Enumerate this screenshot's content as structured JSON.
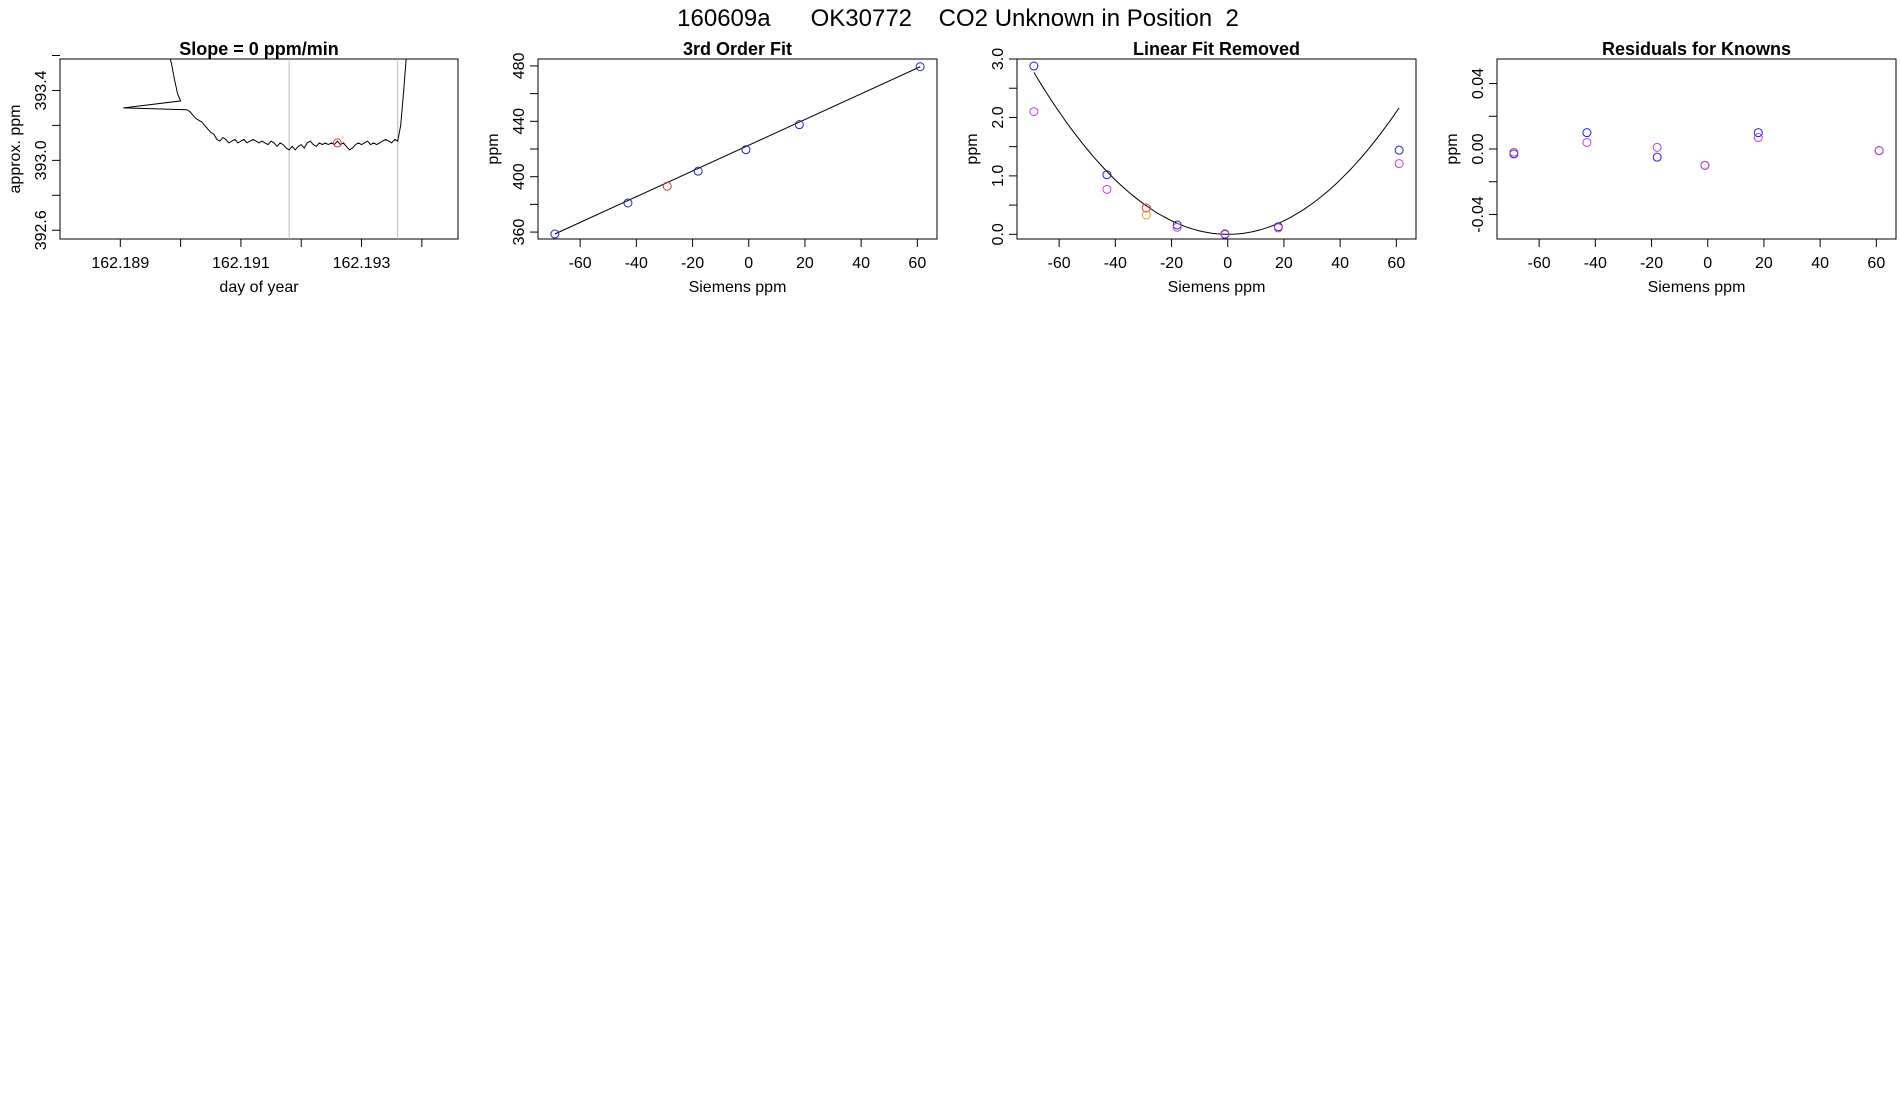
{
  "page": {
    "main_title": "160609a      OK30772    CO2 Unknown in Position  2"
  },
  "colors": {
    "line": "#000000",
    "blue": "#1f1fd0",
    "red": "#e03030",
    "magenta": "#c040e0",
    "orange": "#f0a020",
    "guide": "#bbbbbb",
    "frame": "#000000"
  },
  "chart_data": [
    {
      "type": "line",
      "title": "Slope =  0  ppm/min",
      "xlabel": "day of year",
      "ylabel": "approx. ppm",
      "xlim": [
        162.188,
        162.1946
      ],
      "ylim": [
        392.55,
        393.58
      ],
      "xticks": [
        162.189,
        162.19,
        162.191,
        162.192,
        162.193,
        162.194
      ],
      "xtick_labels": [
        "162.189",
        "",
        "162.191",
        "",
        "162.193",
        ""
      ],
      "yticks": [
        392.6,
        392.8,
        393.0,
        393.2,
        393.4,
        393.6
      ],
      "ytick_labels": [
        "392.6",
        "",
        "393.0",
        "",
        "393.4",
        ""
      ],
      "vlines": [
        162.1918,
        162.1936
      ],
      "trace": [
        [
          162.1898,
          393.62
        ],
        [
          162.18985,
          393.55
        ],
        [
          162.1899,
          393.46
        ],
        [
          162.18995,
          393.38
        ],
        [
          162.19,
          393.34
        ],
        [
          162.18905,
          393.3
        ],
        [
          162.1901,
          393.29
        ],
        [
          162.19015,
          393.28
        ],
        [
          162.1902,
          393.26
        ],
        [
          162.19025,
          393.24
        ],
        [
          162.1903,
          393.23
        ],
        [
          162.19035,
          393.22
        ],
        [
          162.1904,
          393.2
        ],
        [
          162.19045,
          393.18
        ],
        [
          162.1905,
          393.16
        ],
        [
          162.19055,
          393.15
        ],
        [
          162.1906,
          393.12
        ],
        [
          162.19065,
          393.11
        ],
        [
          162.1907,
          393.13
        ],
        [
          162.19075,
          393.12
        ],
        [
          162.1908,
          393.1
        ],
        [
          162.19085,
          393.11
        ],
        [
          162.1909,
          393.12
        ],
        [
          162.19095,
          393.1
        ],
        [
          162.191,
          393.11
        ],
        [
          162.19105,
          393.12
        ],
        [
          162.1911,
          393.1
        ],
        [
          162.19115,
          393.11
        ],
        [
          162.1912,
          393.12
        ],
        [
          162.19125,
          393.11
        ],
        [
          162.1913,
          393.1
        ],
        [
          162.19135,
          393.11
        ],
        [
          162.1914,
          393.1
        ],
        [
          162.19145,
          393.09
        ],
        [
          162.1915,
          393.11
        ],
        [
          162.19155,
          393.1
        ],
        [
          162.1916,
          393.08
        ],
        [
          162.19165,
          393.1
        ],
        [
          162.1917,
          393.09
        ],
        [
          162.19175,
          393.07
        ],
        [
          162.1918,
          393.06
        ],
        [
          162.19185,
          393.08
        ],
        [
          162.1919,
          393.06
        ],
        [
          162.19195,
          393.08
        ],
        [
          162.192,
          393.09
        ],
        [
          162.19205,
          393.07
        ],
        [
          162.1921,
          393.1
        ],
        [
          162.19215,
          393.11
        ],
        [
          162.1922,
          393.09
        ],
        [
          162.19225,
          393.08
        ],
        [
          162.1923,
          393.1
        ],
        [
          162.19235,
          393.09
        ],
        [
          162.1924,
          393.1
        ],
        [
          162.19245,
          393.09
        ],
        [
          162.1925,
          393.1
        ],
        [
          162.19255,
          393.09
        ],
        [
          162.1926,
          393.11
        ],
        [
          162.19265,
          393.09
        ],
        [
          162.1927,
          393.1
        ],
        [
          162.19275,
          393.08
        ],
        [
          162.1928,
          393.06
        ],
        [
          162.19285,
          393.07
        ],
        [
          162.1929,
          393.09
        ],
        [
          162.19295,
          393.1
        ],
        [
          162.193,
          393.09
        ],
        [
          162.19305,
          393.1
        ],
        [
          162.1931,
          393.11
        ],
        [
          162.19315,
          393.09
        ],
        [
          162.1932,
          393.1
        ],
        [
          162.19325,
          393.09
        ],
        [
          162.1933,
          393.1
        ],
        [
          162.19335,
          393.11
        ],
        [
          162.1934,
          393.12
        ],
        [
          162.19345,
          393.11
        ],
        [
          162.1935,
          393.1
        ],
        [
          162.19355,
          393.12
        ],
        [
          162.1936,
          393.11
        ],
        [
          162.19365,
          393.2
        ],
        [
          162.1937,
          393.4
        ],
        [
          162.19375,
          393.62
        ]
      ],
      "points": [
        {
          "x": 162.1926,
          "y": 393.1,
          "color": "red"
        }
      ]
    },
    {
      "type": "scatter",
      "title": "3rd Order Fit",
      "xlabel": "Siemens ppm",
      "ylabel": "ppm",
      "xlim": [
        -75,
        67
      ],
      "ylim": [
        355,
        485
      ],
      "xticks": [
        -60,
        -40,
        -20,
        0,
        20,
        40,
        60
      ],
      "xtick_labels": [
        "-60",
        "-40",
        "-20",
        "0",
        "20",
        "40",
        "60"
      ],
      "yticks": [
        360,
        380,
        400,
        420,
        440,
        460,
        480
      ],
      "ytick_labels": [
        "360",
        "",
        "400",
        "",
        "440",
        "",
        "480"
      ],
      "fit_line": [
        [
          -69,
          358.6
        ],
        [
          61,
          479.4
        ]
      ],
      "points": [
        {
          "x": -69,
          "y": 358.6,
          "color": "blue"
        },
        {
          "x": -43,
          "y": 381.0,
          "color": "blue"
        },
        {
          "x": -29,
          "y": 393.1,
          "color": "red"
        },
        {
          "x": -18,
          "y": 404.0,
          "color": "blue"
        },
        {
          "x": -1,
          "y": 419.5,
          "color": "blue"
        },
        {
          "x": 18,
          "y": 437.6,
          "color": "blue"
        },
        {
          "x": 61,
          "y": 479.4,
          "color": "blue"
        }
      ]
    },
    {
      "type": "scatter",
      "title": "Linear Fit Removed",
      "xlabel": "Siemens ppm",
      "ylabel": "ppm",
      "xlim": [
        -75,
        67
      ],
      "ylim": [
        -0.08,
        3.0
      ],
      "xticks": [
        -60,
        -40,
        -20,
        0,
        20,
        40,
        60
      ],
      "xtick_labels": [
        "-60",
        "-40",
        "-20",
        "0",
        "20",
        "40",
        "60"
      ],
      "yticks": [
        0.0,
        0.5,
        1.0,
        1.5,
        2.0,
        2.5,
        3.0
      ],
      "ytick_labels": [
        "0.0",
        "",
        "1.0",
        "",
        "2.0",
        "",
        "3.0"
      ],
      "curve": {
        "a": 0.000582,
        "x0": 0,
        "xmin": -69,
        "xmax": 61
      },
      "points": [
        {
          "x": -69,
          "y": 2.88,
          "color": "blue"
        },
        {
          "x": -69,
          "y": 2.1,
          "color": "magenta"
        },
        {
          "x": -43,
          "y": 1.02,
          "color": "blue"
        },
        {
          "x": -43,
          "y": 0.77,
          "color": "magenta"
        },
        {
          "x": -29,
          "y": 0.45,
          "color": "red"
        },
        {
          "x": -29,
          "y": 0.33,
          "color": "orange"
        },
        {
          "x": -18,
          "y": 0.16,
          "color": "blue"
        },
        {
          "x": -18,
          "y": 0.12,
          "color": "magenta"
        },
        {
          "x": -1,
          "y": 0.0,
          "color": "blue"
        },
        {
          "x": -1,
          "y": 0.01,
          "color": "magenta"
        },
        {
          "x": 18,
          "y": 0.13,
          "color": "blue"
        },
        {
          "x": 18,
          "y": 0.11,
          "color": "magenta"
        },
        {
          "x": 61,
          "y": 1.44,
          "color": "blue"
        },
        {
          "x": 61,
          "y": 1.21,
          "color": "magenta"
        }
      ]
    },
    {
      "type": "scatter",
      "title": "Residuals for Knowns",
      "xlabel": "Siemens ppm",
      "ylabel": "ppm",
      "xlim": [
        -75,
        67
      ],
      "ylim": [
        -0.055,
        0.055
      ],
      "xticks": [
        -60,
        -40,
        -20,
        0,
        20,
        40,
        60
      ],
      "xtick_labels": [
        "-60",
        "-40",
        "-20",
        "0",
        "20",
        "40",
        "60"
      ],
      "yticks": [
        -0.04,
        -0.02,
        0.0,
        0.02,
        0.04
      ],
      "ytick_labels": [
        "-0.04",
        "",
        "0.00",
        "",
        "0.04"
      ],
      "points": [
        {
          "x": -69,
          "y": -0.003,
          "color": "blue"
        },
        {
          "x": -69,
          "y": -0.002,
          "color": "magenta"
        },
        {
          "x": -43,
          "y": 0.01,
          "color": "blue"
        },
        {
          "x": -43,
          "y": 0.004,
          "color": "magenta"
        },
        {
          "x": -18,
          "y": -0.005,
          "color": "blue"
        },
        {
          "x": -18,
          "y": 0.001,
          "color": "magenta"
        },
        {
          "x": -1,
          "y": -0.01,
          "color": "blue"
        },
        {
          "x": -1,
          "y": -0.01,
          "color": "magenta"
        },
        {
          "x": 18,
          "y": 0.01,
          "color": "blue"
        },
        {
          "x": 18,
          "y": 0.007,
          "color": "magenta"
        },
        {
          "x": 61,
          "y": -0.001,
          "color": "blue"
        },
        {
          "x": 61,
          "y": -0.001,
          "color": "magenta"
        }
      ]
    }
  ]
}
